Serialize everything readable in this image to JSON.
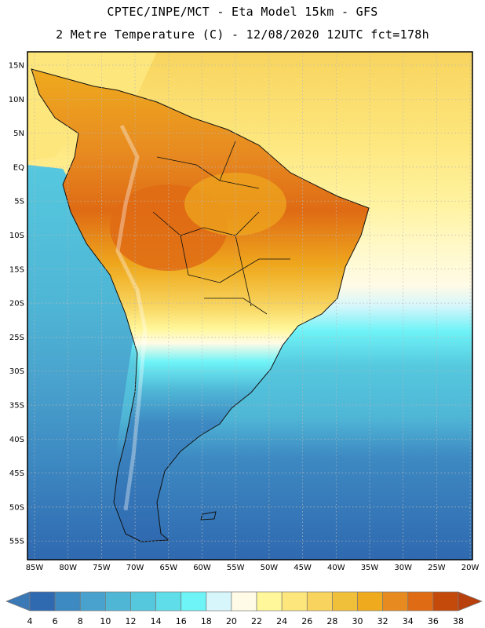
{
  "header": {
    "title_line1": "CPTEC/INPE/MCT -  Eta Model 15km - GFS",
    "title_line2": "2 Metre Temperature (C) - 12/08/2020 12UTC fct=178h"
  },
  "map": {
    "region": "South America",
    "lat_labels": [
      "15N",
      "10N",
      "5N",
      "EQ",
      "5S",
      "10S",
      "15S",
      "20S",
      "25S",
      "30S",
      "35S",
      "40S",
      "45S",
      "50S",
      "55S"
    ],
    "lon_labels": [
      "85W",
      "80W",
      "75W",
      "70W",
      "65W",
      "60W",
      "55W",
      "50W",
      "45W",
      "40W",
      "35W",
      "30W",
      "25W",
      "20W"
    ],
    "land_color": "#1a1a1a",
    "grid_style": "dotted"
  },
  "colorbar": {
    "labels": [
      "4",
      "6",
      "8",
      "10",
      "12",
      "14",
      "16",
      "18",
      "20",
      "22",
      "24",
      "26",
      "28",
      "30",
      "32",
      "34",
      "36",
      "38"
    ],
    "colors": [
      "#3a78b6",
      "#2f69b0",
      "#3d89c2",
      "#49a2cd",
      "#4fb6d6",
      "#55c8de",
      "#5fdde8",
      "#6ef3f7",
      "#d6f6fb",
      "#fffbe6",
      "#fff79a",
      "#fde67c",
      "#f8d45e",
      "#f1c03a",
      "#efaa1e",
      "#e78a20",
      "#df6b14",
      "#c44a0c"
    ],
    "low_arrow_color": "#3a78b6",
    "high_arrow_color": "#b8400d"
  }
}
